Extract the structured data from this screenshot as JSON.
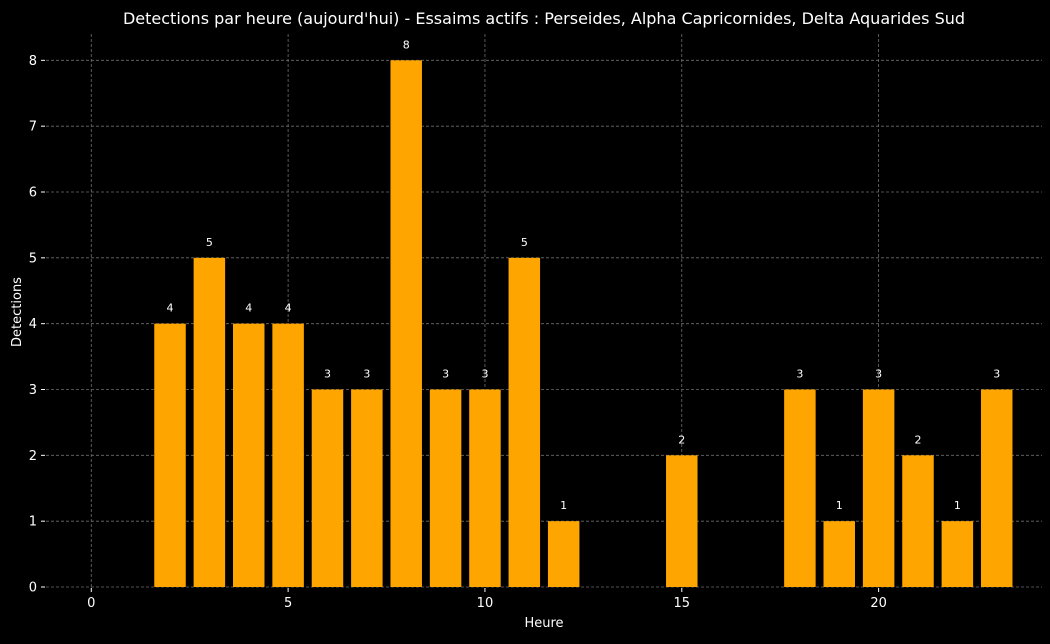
{
  "chart_data": {
    "type": "bar",
    "title": "Detections par heure (aujourd'hui) - Essaims actifs : Perseides, Alpha Capricornides, Delta Aquarides Sud",
    "xlabel": "Heure",
    "ylabel": "Detections",
    "x": [
      2,
      3,
      4,
      5,
      6,
      7,
      8,
      9,
      10,
      11,
      12,
      15,
      18,
      19,
      20,
      21,
      22,
      23
    ],
    "values": [
      4,
      5,
      4,
      4,
      3,
      3,
      8,
      3,
      3,
      5,
      1,
      2,
      3,
      1,
      3,
      2,
      1,
      3
    ],
    "x_ticks": [
      0,
      5,
      10,
      15,
      20
    ],
    "y_ticks": [
      0,
      1,
      2,
      3,
      4,
      5,
      6,
      7,
      8
    ],
    "xlim": [
      -1.15,
      24.15
    ],
    "ylim": [
      0,
      8.4
    ],
    "grid": true,
    "data_labels": true
  },
  "colors": {
    "background": "#000000",
    "bar": "#ffa500",
    "text": "#ffffff",
    "grid": "#6e6e6e"
  }
}
